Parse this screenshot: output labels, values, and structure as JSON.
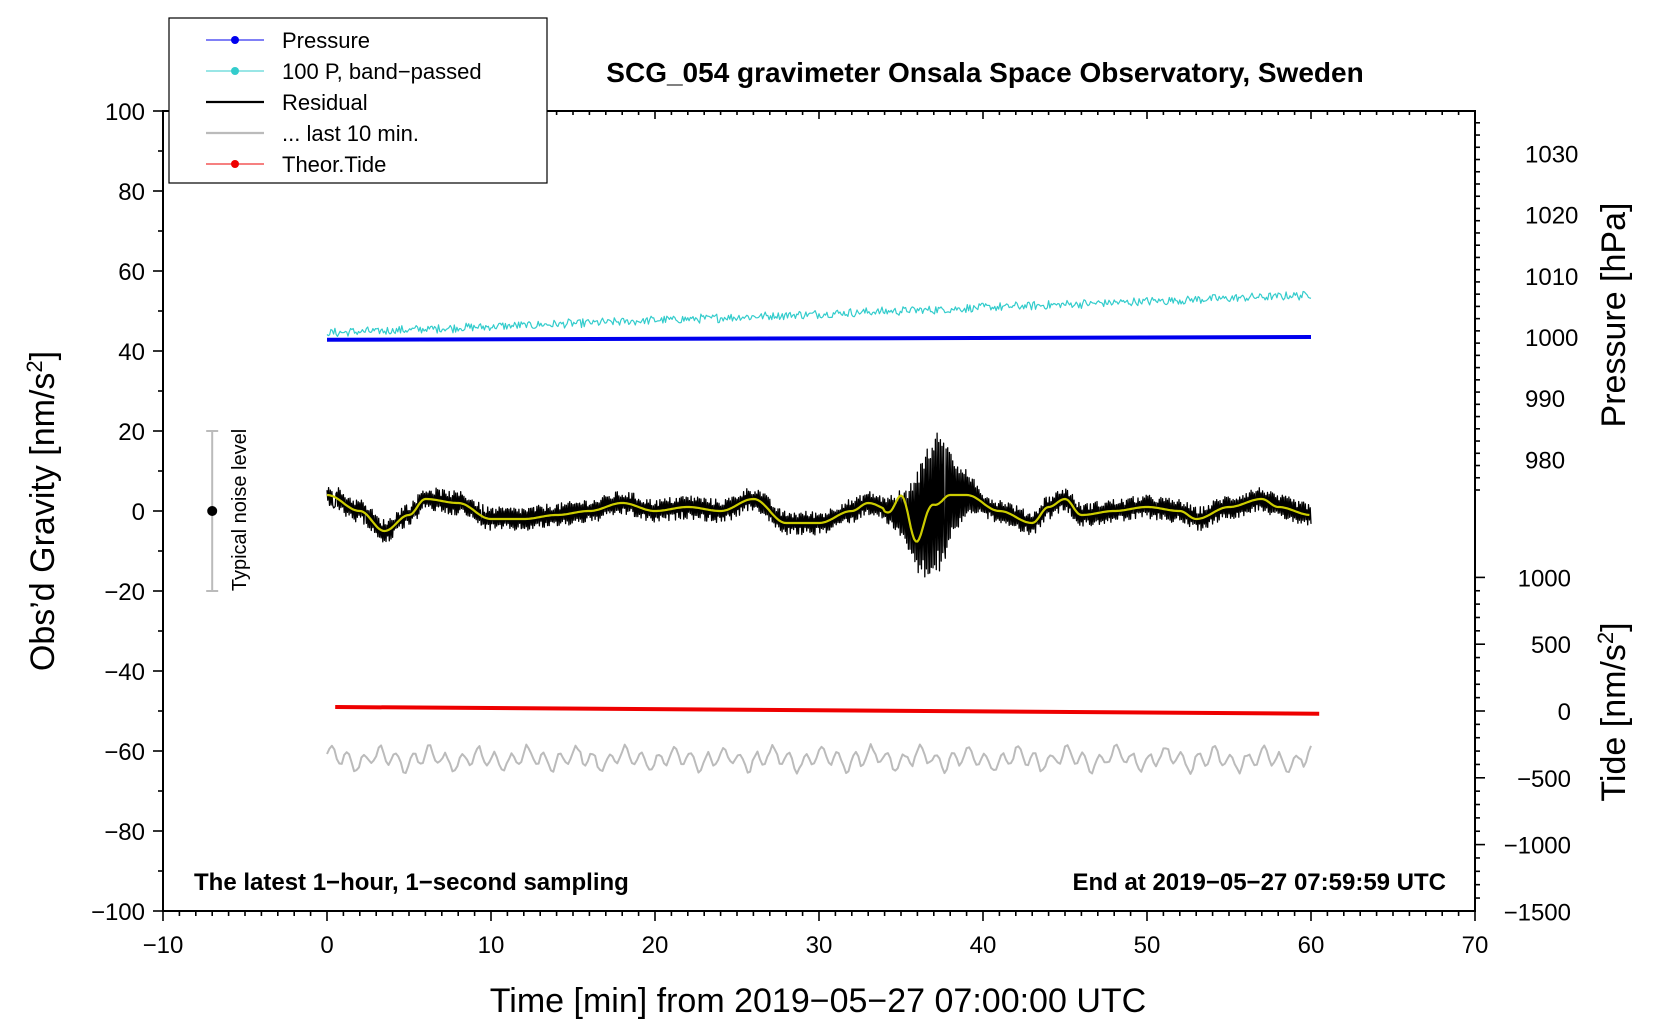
{
  "chart_data": {
    "type": "line",
    "title": "SCG_054 gravimeter Onsala Space Observatory, Sweden",
    "xlabel": "Time [min] from 2019−05−27 07:00:00 UTC",
    "ylabel": "Obs’d Gravity [nm/s",
    "ylabel_sup": "2",
    "ylabel_end": "]",
    "right_pressure_label": "Pressure [hPa]",
    "right_tide_label": "Tide [nm/s",
    "right_tide_sup": "2",
    "right_tide_end": "]",
    "xlim": [
      -10,
      70
    ],
    "ylim": [
      -100,
      100
    ],
    "x_ticks": [
      -10,
      0,
      10,
      20,
      30,
      40,
      50,
      60,
      70
    ],
    "y_ticks": [
      -100,
      -80,
      -60,
      -40,
      -20,
      0,
      20,
      40,
      60,
      80,
      100
    ],
    "x_tick_labels": [
      "−10",
      "0",
      "10",
      "20",
      "30",
      "40",
      "50",
      "60",
      "70"
    ],
    "y_tick_labels": [
      "−100",
      "−80",
      "−60",
      "−40",
      "−20",
      "0",
      "20",
      "40",
      "60",
      "80",
      "100"
    ],
    "pressure_axis": {
      "ticks": [
        980,
        990,
        1000,
        1010,
        1020,
        1030
      ],
      "tick_labels": [
        "980",
        "990",
        "1000",
        "1010",
        "1020",
        "1030"
      ],
      "gravity_at_1000": 43.5,
      "gravity_per_hPa": 1.53
    },
    "tide_axis": {
      "ticks": [
        -1500,
        -1000,
        -500,
        0,
        500,
        1000
      ],
      "tick_labels": [
        "−1500",
        "−1000",
        "−500",
        "0",
        "500",
        "1000"
      ],
      "gravity_at_0": -50,
      "gravity_per_unit": 0.0334
    },
    "legend": [
      {
        "label": "Pressure",
        "color": "#0000ee",
        "marker": true
      },
      {
        "label": "100 P, band−passed",
        "color": "#33cccc",
        "marker": true
      },
      {
        "label": "Residual",
        "color": "#000000",
        "marker": false
      },
      {
        "label": "... last 10 min.",
        "color": "#bbbbbb",
        "marker": false
      },
      {
        "label": "Theor.Tide",
        "color": "#ee0000",
        "marker": true
      }
    ],
    "series": [
      {
        "name": "Pressure",
        "color": "#0000ee",
        "x_range": [
          0,
          60
        ],
        "y_start": 42.8,
        "y_end": 43.5
      },
      {
        "name": "100 P, band−passed",
        "color": "#33cccc",
        "x_range": [
          0,
          60
        ],
        "y_start": 44.5,
        "y_end": 54,
        "noise_amp": 1.2
      },
      {
        "name": "Residual",
        "color": "#000000",
        "x_range": [
          0,
          60
        ],
        "envelope_points": [
          [
            0,
            4
          ],
          [
            2,
            0
          ],
          [
            3.5,
            -5
          ],
          [
            5,
            -1
          ],
          [
            6,
            3
          ],
          [
            8,
            2
          ],
          [
            10,
            -2
          ],
          [
            12,
            -2
          ],
          [
            14,
            -1
          ],
          [
            16,
            0
          ],
          [
            18,
            2
          ],
          [
            20,
            0
          ],
          [
            22,
            1
          ],
          [
            24,
            0
          ],
          [
            26,
            3
          ],
          [
            28,
            -3
          ],
          [
            30,
            -3
          ],
          [
            32,
            0
          ],
          [
            33,
            2
          ],
          [
            34.5,
            0
          ],
          [
            36,
            -3
          ],
          [
            37,
            1
          ],
          [
            38,
            4
          ],
          [
            39,
            4
          ],
          [
            41,
            0
          ],
          [
            43,
            -3
          ],
          [
            44,
            1
          ],
          [
            45,
            3
          ],
          [
            46,
            -1
          ],
          [
            48,
            0
          ],
          [
            50,
            1
          ],
          [
            52,
            0
          ],
          [
            53,
            -2
          ],
          [
            55,
            1
          ],
          [
            57,
            3
          ],
          [
            58,
            1
          ],
          [
            60,
            -1
          ]
        ],
        "burst_range": [
          34,
          40
        ],
        "burst_peak_min": 37,
        "burst_amp": 16,
        "noise_amp": 3
      },
      {
        "name": "Residual smoothed",
        "color": "#cccc00",
        "x_range": [
          0,
          60
        ]
      },
      {
        "name": "... last 10 min.",
        "color": "#bbbbbb",
        "x_range": [
          0,
          60
        ],
        "y_center": -62,
        "amp": 2.5
      },
      {
        "name": "Theor.Tide",
        "color": "#ee0000",
        "x_range": [
          0.5,
          60.5
        ],
        "tide_start": 30,
        "tide_end": -20
      }
    ],
    "noise_level": {
      "x": -7,
      "y": 0,
      "low": -20,
      "high": 20,
      "label": "Typical noise level"
    },
    "annotations": {
      "bottom_left": "The latest 1−hour, 1−second sampling",
      "bottom_right": "End at 2019−05−27 07:59:59 UTC"
    }
  }
}
